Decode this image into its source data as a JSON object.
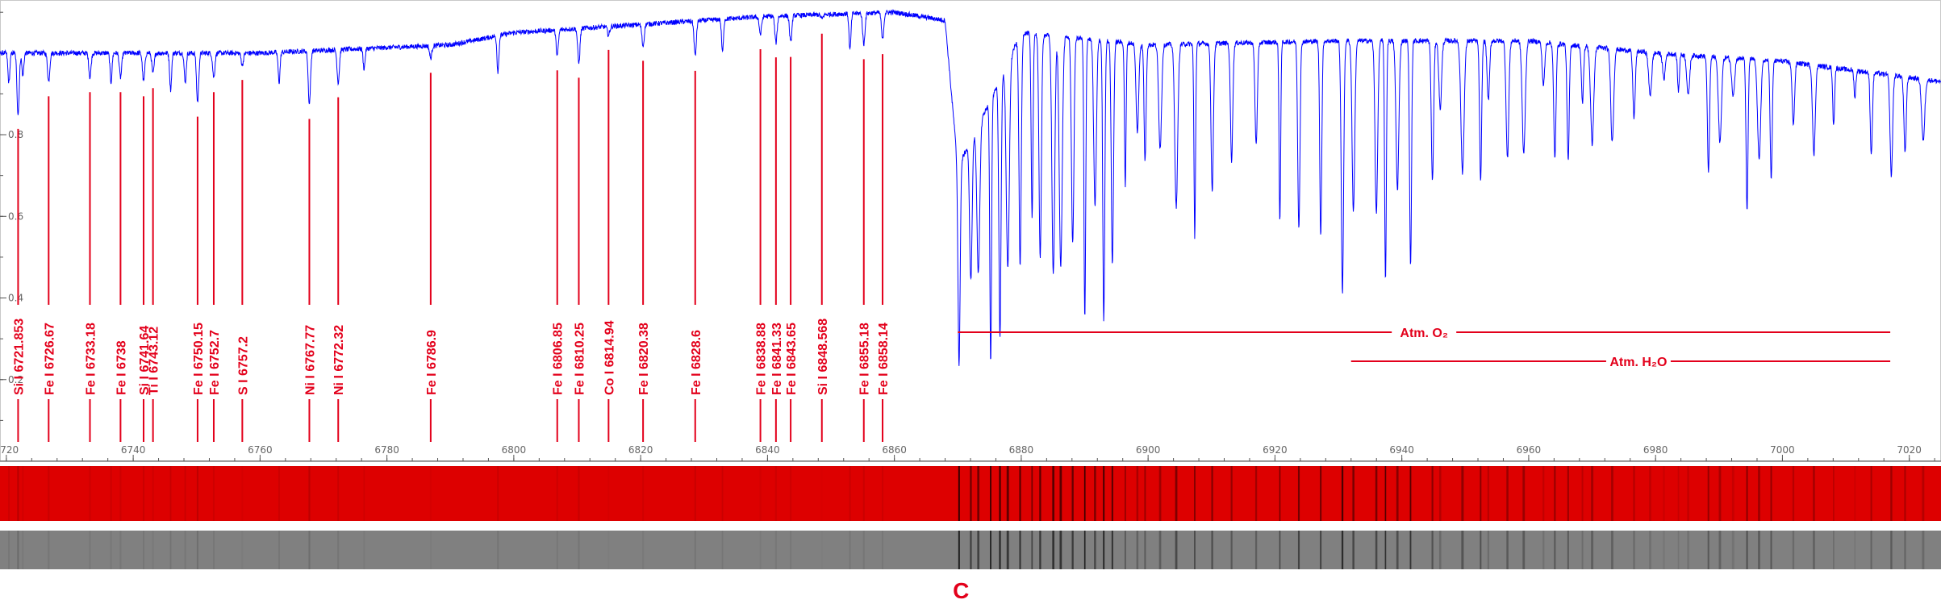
{
  "chart_data": {
    "type": "line",
    "title": "",
    "xlabel": "",
    "ylabel": "",
    "xlim": [
      6719,
      7025
    ],
    "ylim": [
      0,
      1.13
    ],
    "grid": false,
    "x_ticks": [
      "6720",
      "6740",
      "6760",
      "6780",
      "6800",
      "6820",
      "6840",
      "6860",
      "6880",
      "6900",
      "6920",
      "6940",
      "6960",
      "6980",
      "7000",
      "7020"
    ],
    "y_ticks": [
      "0.2",
      "0.4",
      "0.6",
      "0.8"
    ],
    "line_color": "#0000ff",
    "label_color": "#e3001b",
    "continuum": [
      [
        6719,
        1.0
      ],
      [
        6760,
        1.0
      ],
      [
        6790,
        1.02
      ],
      [
        6800,
        1.05
      ],
      [
        6820,
        1.07
      ],
      [
        6840,
        1.09
      ],
      [
        6860,
        1.1
      ],
      [
        6868,
        1.08
      ],
      [
        6870,
        0.72
      ],
      [
        6875,
        0.88
      ],
      [
        6880,
        1.05
      ],
      [
        6900,
        1.02
      ],
      [
        6930,
        1.03
      ],
      [
        6960,
        1.03
      ],
      [
        6980,
        1.0
      ],
      [
        7000,
        0.98
      ],
      [
        7025,
        0.93
      ]
    ],
    "lines": [
      {
        "element": "Si I",
        "wavelength": "6721.853",
        "depth": 0.85
      },
      {
        "element": "Fe I",
        "wavelength": "6726.67",
        "depth": 0.93
      },
      {
        "element": "Fe I",
        "wavelength": "6733.18",
        "depth": 0.94
      },
      {
        "element": "Fe I",
        "wavelength": "6738",
        "depth": 0.94
      },
      {
        "element": "Si I",
        "wavelength": "6741.64",
        "depth": 0.93
      },
      {
        "element": "Ti I",
        "wavelength": "6743.12",
        "depth": 0.95
      },
      {
        "element": "Fe I",
        "wavelength": "6750.15",
        "depth": 0.88
      },
      {
        "element": "Fe I",
        "wavelength": "6752.7",
        "depth": 0.94
      },
      {
        "element": "S I",
        "wavelength": "6757.2",
        "depth": 0.97
      },
      {
        "element": "Ni I",
        "wavelength": "6767.77",
        "depth": 0.87
      },
      {
        "element": "Ni I",
        "wavelength": "6772.32",
        "depth": 0.92
      },
      {
        "element": "Fe I",
        "wavelength": "6786.9",
        "depth": 0.97
      },
      {
        "element": "Fe I",
        "wavelength": "6806.85",
        "depth": 0.94
      },
      {
        "element": "Fe I",
        "wavelength": "6810.25",
        "depth": 0.92
      },
      {
        "element": "Co I",
        "wavelength": "6814.94",
        "depth": 0.98
      },
      {
        "element": "Fe I",
        "wavelength": "6820.38",
        "depth": 0.95
      },
      {
        "element": "Fe I",
        "wavelength": "6828.6",
        "depth": 0.92
      },
      {
        "element": "Fe I",
        "wavelength": "6838.88",
        "depth": 0.96
      },
      {
        "element": "Fe I",
        "wavelength": "6841.33",
        "depth": 0.94
      },
      {
        "element": "Fe I",
        "wavelength": "6843.65",
        "depth": 0.94
      },
      {
        "element": "Si I",
        "wavelength": "6848.568",
        "depth": 0.99
      },
      {
        "element": "Fe I",
        "wavelength": "6855.18",
        "depth": 0.93
      },
      {
        "element": "Fe I",
        "wavelength": "6858.14",
        "depth": 0.94
      }
    ],
    "atm_bands": [
      {
        "label": "Atm. O₂",
        "from": 6870,
        "to": 7017
      },
      {
        "label": "Atm. H₂O",
        "from": 6932,
        "to": 7017
      }
    ],
    "strip_colors": {
      "color": "#dd0000",
      "gray": "#808080"
    },
    "band_letter": "C"
  }
}
